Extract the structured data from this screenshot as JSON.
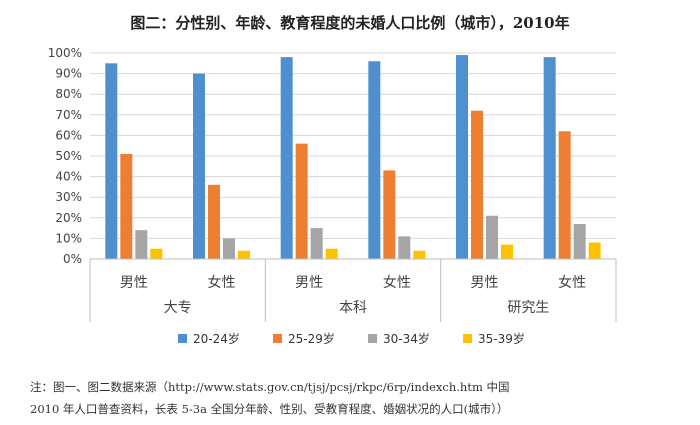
{
  "chart_data": {
    "type": "bar",
    "title": "图二：分性别、年龄、教育程度的未婚人口比例（城市），2010年",
    "ylim": [
      0,
      100
    ],
    "yticks": [
      "0%",
      "10%",
      "20%",
      "30%",
      "40%",
      "50%",
      "60%",
      "70%",
      "80%",
      "90%",
      "100%"
    ],
    "groups": [
      {
        "name": "大专",
        "categories": [
          "男性",
          "女性"
        ]
      },
      {
        "name": "本科",
        "categories": [
          "男性",
          "女性"
        ]
      },
      {
        "name": "研究生",
        "categories": [
          "男性",
          "女性"
        ]
      }
    ],
    "series": [
      {
        "name": "20-24岁",
        "color": "#4e8fd0",
        "values": [
          95,
          90,
          98,
          96,
          99,
          98
        ]
      },
      {
        "name": "25-29岁",
        "color": "#ee7e31",
        "values": [
          51,
          36,
          56,
          43,
          72,
          62
        ]
      },
      {
        "name": "30-34岁",
        "color": "#a5a5a5",
        "values": [
          14,
          10,
          15,
          11,
          21,
          17
        ]
      },
      {
        "name": "35-39岁",
        "color": "#fdc300",
        "values": [
          5,
          4,
          5,
          4,
          7,
          8
        ]
      }
    ]
  },
  "note": "注：图一、图二数据来源（http://www.stats.gov.cn/tjsj/pcsj/rkpc/6rp/indexch.htm 中国\n2010 年人口普查资料，长表 5-3a 全国分年龄、性别、受教育程度、婚姻状况的人口(城市））"
}
